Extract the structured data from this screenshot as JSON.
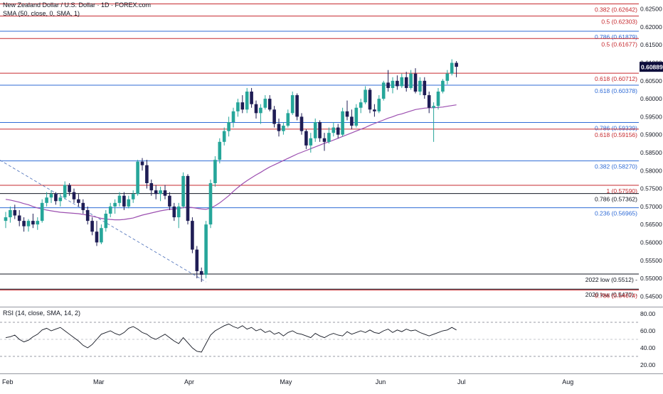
{
  "header": {
    "title": "New Zealand Dollar / U.S. Dollar · 1D · FOREX.com",
    "sma_label": "SMA (50, close, 0, SMA, 1)"
  },
  "rsi_header": "RSI (14, close, SMA, 14, 2)",
  "colors": {
    "up": "#26a69a",
    "down": "#1f1d55",
    "sma": "#9c4fb0",
    "red_level": "#c62a2f",
    "blue_level": "#2f6bd6",
    "black_level": "#131722",
    "price_tag": "#0d0d3b"
  },
  "chart_data": {
    "type": "candlestick",
    "price_axis": {
      "ylim": [
        0.5425,
        0.6275
      ],
      "ticks": [
        "0.62500",
        "0.62000",
        "0.61500",
        "0.61000",
        "0.60500",
        "0.60000",
        "0.59500",
        "0.59000",
        "0.58500",
        "0.58000",
        "0.57500",
        "0.57000",
        "0.56500",
        "0.56000",
        "0.55500",
        "0.55000",
        "0.54500"
      ]
    },
    "x_axis": {
      "labels": [
        "Feb",
        "Mar",
        "Apr",
        "May",
        "Jun",
        "Jul",
        "Aug"
      ]
    },
    "last_price": "0.60889",
    "levels": [
      {
        "label": "0.382 (0.62642)",
        "value": 0.62642,
        "color": "red"
      },
      {
        "label": "0.5 (0.62303)",
        "value": 0.62303,
        "color": "red"
      },
      {
        "label": "0.786 (0.61879)",
        "value": 0.61879,
        "color": "blue"
      },
      {
        "label": "0.5 (0.61677)",
        "value": 0.61677,
        "color": "red"
      },
      {
        "label": "0.618 (0.60712)",
        "value": 0.60712,
        "color": "red"
      },
      {
        "label": "0.618 (0.60378)",
        "value": 0.60378,
        "color": "blue"
      },
      {
        "label": "0.786 (0.59339)",
        "value": 0.59339,
        "color": "blue"
      },
      {
        "label": "0.618 (0.59156)",
        "value": 0.59156,
        "color": "red"
      },
      {
        "label": "0.382 (0.58270)",
        "value": 0.5827,
        "color": "blue"
      },
      {
        "label": "1 (0.57590)",
        "value": 0.5759,
        "color": "red"
      },
      {
        "label": "0.786 (0.57362)",
        "value": 0.57362,
        "color": "black"
      },
      {
        "label": "0.236 (0.56965)",
        "value": 0.56965,
        "color": "blue"
      },
      {
        "label": "2022 low (0.5512) -",
        "value": 0.5512,
        "color": "black"
      },
      {
        "label": "2020 low (0.5470) -",
        "value": 0.547,
        "color": "black"
      },
      {
        "label": "0.786 (0.54674)",
        "value": 0.54674,
        "color": "red"
      }
    ],
    "candles": [
      [
        0.566,
        0.5685,
        0.564,
        0.567
      ],
      [
        0.567,
        0.57,
        0.5655,
        0.569
      ],
      [
        0.569,
        0.5705,
        0.5665,
        0.5675
      ],
      [
        0.5675,
        0.569,
        0.5645,
        0.566
      ],
      [
        0.566,
        0.567,
        0.563,
        0.5645
      ],
      [
        0.5645,
        0.5665,
        0.563,
        0.566
      ],
      [
        0.566,
        0.568,
        0.564,
        0.565
      ],
      [
        0.565,
        0.567,
        0.5635,
        0.566
      ],
      [
        0.566,
        0.572,
        0.5655,
        0.571
      ],
      [
        0.571,
        0.574,
        0.57,
        0.5725
      ],
      [
        0.5725,
        0.5745,
        0.571,
        0.5735
      ],
      [
        0.5735,
        0.574,
        0.5705,
        0.5715
      ],
      [
        0.5715,
        0.5735,
        0.57,
        0.5725
      ],
      [
        0.5725,
        0.577,
        0.572,
        0.576
      ],
      [
        0.576,
        0.5765,
        0.573,
        0.574
      ],
      [
        0.574,
        0.575,
        0.571,
        0.572
      ],
      [
        0.572,
        0.5735,
        0.57,
        0.571
      ],
      [
        0.571,
        0.572,
        0.568,
        0.569
      ],
      [
        0.569,
        0.57,
        0.565,
        0.566
      ],
      [
        0.566,
        0.567,
        0.562,
        0.563
      ],
      [
        0.563,
        0.566,
        0.559,
        0.56
      ],
      [
        0.56,
        0.565,
        0.5595,
        0.564
      ],
      [
        0.564,
        0.569,
        0.563,
        0.568
      ],
      [
        0.568,
        0.571,
        0.567,
        0.57
      ],
      [
        0.57,
        0.572,
        0.568,
        0.571
      ],
      [
        0.571,
        0.574,
        0.57,
        0.573
      ],
      [
        0.573,
        0.574,
        0.569,
        0.57
      ],
      [
        0.57,
        0.573,
        0.5695,
        0.572
      ],
      [
        0.572,
        0.5745,
        0.571,
        0.5735
      ],
      [
        0.5735,
        0.583,
        0.573,
        0.5825
      ],
      [
        0.5825,
        0.5835,
        0.58,
        0.5815
      ],
      [
        0.5815,
        0.583,
        0.575,
        0.5765
      ],
      [
        0.5765,
        0.5775,
        0.573,
        0.5745
      ],
      [
        0.5745,
        0.576,
        0.572,
        0.5735
      ],
      [
        0.5735,
        0.5755,
        0.5715,
        0.5745
      ],
      [
        0.5745,
        0.576,
        0.572,
        0.573
      ],
      [
        0.573,
        0.574,
        0.569,
        0.57
      ],
      [
        0.57,
        0.571,
        0.566,
        0.567
      ],
      [
        0.567,
        0.571,
        0.564,
        0.57
      ],
      [
        0.57,
        0.5795,
        0.5695,
        0.5785
      ],
      [
        0.5785,
        0.579,
        0.565,
        0.566
      ],
      [
        0.566,
        0.567,
        0.557,
        0.558
      ],
      [
        0.558,
        0.559,
        0.55,
        0.552
      ],
      [
        0.552,
        0.553,
        0.549,
        0.551
      ],
      [
        0.551,
        0.566,
        0.55,
        0.565
      ],
      [
        0.565,
        0.5775,
        0.564,
        0.5765
      ],
      [
        0.5765,
        0.584,
        0.5755,
        0.583
      ],
      [
        0.583,
        0.589,
        0.582,
        0.588
      ],
      [
        0.588,
        0.592,
        0.587,
        0.591
      ],
      [
        0.591,
        0.595,
        0.5895,
        0.5935
      ],
      [
        0.5935,
        0.5975,
        0.592,
        0.5965
      ],
      [
        0.5965,
        0.6,
        0.595,
        0.599
      ],
      [
        0.599,
        0.601,
        0.596,
        0.597
      ],
      [
        0.597,
        0.603,
        0.596,
        0.602
      ],
      [
        0.602,
        0.603,
        0.5975,
        0.5985
      ],
      [
        0.5985,
        0.5995,
        0.5945,
        0.596
      ],
      [
        0.596,
        0.5985,
        0.593,
        0.5975
      ],
      [
        0.5975,
        0.601,
        0.597,
        0.6
      ],
      [
        0.6,
        0.601,
        0.5965,
        0.597
      ],
      [
        0.597,
        0.598,
        0.592,
        0.593
      ],
      [
        0.593,
        0.5945,
        0.5895,
        0.591
      ],
      [
        0.591,
        0.5935,
        0.59,
        0.5925
      ],
      [
        0.5925,
        0.597,
        0.592,
        0.596
      ],
      [
        0.596,
        0.602,
        0.5955,
        0.601
      ],
      [
        0.601,
        0.6015,
        0.594,
        0.595
      ],
      [
        0.595,
        0.596,
        0.59,
        0.591
      ],
      [
        0.591,
        0.5915,
        0.586,
        0.587
      ],
      [
        0.587,
        0.5905,
        0.585,
        0.589
      ],
      [
        0.589,
        0.5945,
        0.588,
        0.5935
      ],
      [
        0.5935,
        0.594,
        0.588,
        0.589
      ],
      [
        0.589,
        0.5905,
        0.5855,
        0.588
      ],
      [
        0.588,
        0.592,
        0.5875,
        0.5905
      ],
      [
        0.5905,
        0.5935,
        0.5895,
        0.592
      ],
      [
        0.592,
        0.593,
        0.589,
        0.59
      ],
      [
        0.59,
        0.5975,
        0.5895,
        0.5965
      ],
      [
        0.5965,
        0.5995,
        0.594,
        0.595
      ],
      [
        0.595,
        0.597,
        0.5915,
        0.5925
      ],
      [
        0.5925,
        0.5985,
        0.592,
        0.5975
      ],
      [
        0.5975,
        0.6,
        0.596,
        0.599
      ],
      [
        0.599,
        0.6035,
        0.5985,
        0.6025
      ],
      [
        0.6025,
        0.603,
        0.596,
        0.597
      ],
      [
        0.597,
        0.5985,
        0.595,
        0.5965
      ],
      [
        0.5965,
        0.601,
        0.596,
        0.6
      ],
      [
        0.6,
        0.605,
        0.5995,
        0.6045
      ],
      [
        0.6045,
        0.608,
        0.602,
        0.603
      ],
      [
        0.603,
        0.606,
        0.6015,
        0.605
      ],
      [
        0.605,
        0.6065,
        0.6025,
        0.6035
      ],
      [
        0.6035,
        0.607,
        0.603,
        0.606
      ],
      [
        0.606,
        0.6075,
        0.602,
        0.603
      ],
      [
        0.603,
        0.608,
        0.6025,
        0.607
      ],
      [
        0.607,
        0.6085,
        0.6015,
        0.602
      ],
      [
        0.602,
        0.606,
        0.601,
        0.605
      ],
      [
        0.605,
        0.606,
        0.6,
        0.601
      ],
      [
        0.601,
        0.602,
        0.596,
        0.5975
      ],
      [
        0.5975,
        0.599,
        0.588,
        0.598
      ],
      [
        0.598,
        0.603,
        0.597,
        0.602
      ],
      [
        0.602,
        0.6055,
        0.6015,
        0.605
      ],
      [
        0.605,
        0.608,
        0.604,
        0.607
      ],
      [
        0.607,
        0.611,
        0.6065,
        0.61
      ],
      [
        0.61,
        0.6105,
        0.606,
        0.6089
      ]
    ],
    "sma": [
      0.572,
      0.5718,
      0.5715,
      0.5712,
      0.5708,
      0.5705,
      0.57,
      0.5696,
      0.5693,
      0.569,
      0.5688,
      0.5686,
      0.5684,
      0.5683,
      0.5682,
      0.5681,
      0.568,
      0.5678,
      0.5676,
      0.5673,
      0.567,
      0.5667,
      0.5665,
      0.5664,
      0.5663,
      0.5663,
      0.5664,
      0.5666,
      0.5668,
      0.5672,
      0.5676,
      0.5679,
      0.5682,
      0.5685,
      0.5688,
      0.569,
      0.5692,
      0.5693,
      0.5694,
      0.5697,
      0.5698,
      0.5697,
      0.5695,
      0.5693,
      0.5692,
      0.5696,
      0.5702,
      0.571,
      0.572,
      0.573,
      0.5742,
      0.5753,
      0.5763,
      0.5772,
      0.578,
      0.5788,
      0.5795,
      0.5803,
      0.581,
      0.5816,
      0.5822,
      0.5828,
      0.5834,
      0.584,
      0.5846,
      0.5851,
      0.5856,
      0.5861,
      0.5866,
      0.5871,
      0.5876,
      0.588,
      0.5885,
      0.589,
      0.5895,
      0.59,
      0.5905,
      0.591,
      0.5915,
      0.592,
      0.5926,
      0.5931,
      0.5936,
      0.5941,
      0.5946,
      0.595,
      0.5955,
      0.5958,
      0.5962,
      0.5966,
      0.597,
      0.5972,
      0.5974,
      0.5975,
      0.5975,
      0.5976,
      0.5977,
      0.5979,
      0.5981,
      0.5983
    ],
    "rsi": {
      "ylim": [
        15,
        85
      ],
      "ticks": [
        "80.00",
        "60.00",
        "40.00",
        "20.00"
      ],
      "bands": [
        70,
        50,
        30
      ],
      "values": [
        52,
        53,
        55,
        50,
        47,
        49,
        53,
        56,
        61,
        63,
        60,
        62,
        64,
        60,
        56,
        52,
        48,
        43,
        40,
        44,
        50,
        56,
        58,
        60,
        57,
        55,
        58,
        63,
        65,
        62,
        58,
        56,
        52,
        50,
        53,
        56,
        52,
        48,
        45,
        52,
        46,
        40,
        36,
        35,
        45,
        55,
        60,
        63,
        66,
        68,
        65,
        63,
        66,
        62,
        64,
        60,
        62,
        58,
        60,
        56,
        58,
        54,
        58,
        60,
        57,
        56,
        54,
        52,
        57,
        54,
        52,
        55,
        57,
        55,
        54,
        59,
        56,
        58,
        60,
        58,
        61,
        58,
        57,
        60,
        62,
        58,
        61,
        59,
        62,
        60,
        61,
        58,
        56,
        54,
        56,
        58,
        60,
        61,
        64,
        61
      ]
    }
  }
}
